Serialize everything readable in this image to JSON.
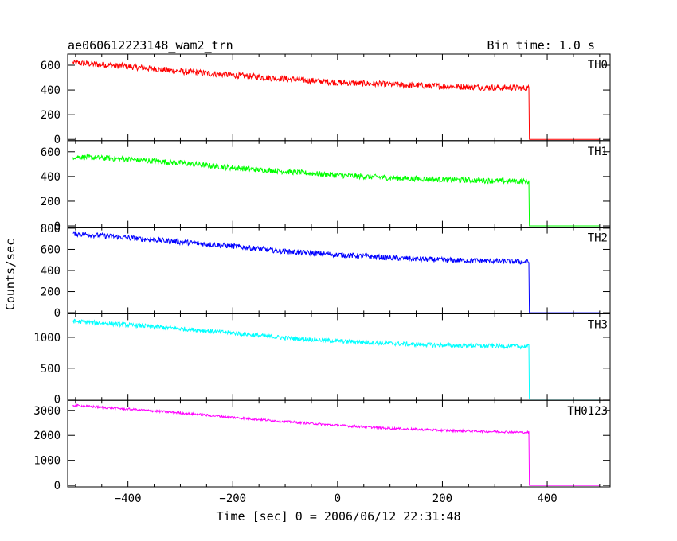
{
  "title_left": "ae060612223148_wam2_trn",
  "title_right": "Bin time: 1.0 s",
  "ylabel": "Counts/sec",
  "xlabel": "Time [sec] 0 = 2006/06/12 22:31:48",
  "chart_data": {
    "type": "line",
    "title": "ae060612223148_wam2_trn",
    "subtitle": "Bin time: 1.0 s",
    "xlabel": "Time [sec] 0 = 2006/06/12 22:31:48",
    "ylabel": "Counts/sec",
    "xlim": [
      -515,
      520
    ],
    "xticks": [
      -400,
      -200,
      0,
      200,
      400
    ],
    "xtick_labels": [
      "−400",
      "−200",
      "0",
      "200",
      "400"
    ],
    "grid": false,
    "series": [
      {
        "name": "TH0",
        "color": "#ff0000",
        "ylim": [
          -10,
          690
        ],
        "yticks": [
          0,
          200,
          400,
          600
        ],
        "x": [
          -505,
          -400,
          -300,
          -200,
          -100,
          0,
          100,
          200,
          300,
          365,
          366,
          500
        ],
        "y": [
          620,
          590,
          550,
          520,
          490,
          460,
          445,
          430,
          420,
          415,
          0,
          0
        ],
        "noise": 25
      },
      {
        "name": "TH1",
        "color": "#00ff00",
        "ylim": [
          -10,
          690
        ],
        "yticks": [
          0,
          200,
          400,
          600
        ],
        "x": [
          -505,
          -400,
          -300,
          -200,
          -100,
          0,
          100,
          200,
          300,
          365,
          366,
          500
        ],
        "y": [
          560,
          540,
          510,
          470,
          440,
          410,
          390,
          375,
          365,
          360,
          0,
          0
        ],
        "noise": 22
      },
      {
        "name": "TH2",
        "color": "#0000ff",
        "ylim": [
          -10,
          810
        ],
        "yticks": [
          0,
          200,
          400,
          600,
          800
        ],
        "x": [
          -505,
          -400,
          -300,
          -200,
          -100,
          0,
          100,
          200,
          300,
          365,
          366,
          500
        ],
        "y": [
          750,
          710,
          670,
          630,
          580,
          550,
          520,
          500,
          490,
          480,
          0,
          0
        ],
        "noise": 25
      },
      {
        "name": "TH3",
        "color": "#00ffff",
        "ylim": [
          -20,
          1380
        ],
        "yticks": [
          0,
          500,
          1000
        ],
        "x": [
          -505,
          -400,
          -300,
          -200,
          -100,
          0,
          100,
          200,
          300,
          365,
          366,
          500
        ],
        "y": [
          1260,
          1200,
          1140,
          1070,
          990,
          940,
          900,
          870,
          860,
          850,
          0,
          0
        ],
        "noise": 35
      },
      {
        "name": "TH0123",
        "color": "#ff00ff",
        "ylim": [
          -60,
          3400
        ],
        "yticks": [
          0,
          1000,
          2000,
          3000
        ],
        "x": [
          -505,
          -400,
          -300,
          -200,
          -100,
          0,
          100,
          200,
          300,
          365,
          366,
          500
        ],
        "y": [
          3200,
          3050,
          2900,
          2720,
          2550,
          2400,
          2280,
          2200,
          2150,
          2120,
          0,
          0
        ],
        "noise": 45
      }
    ]
  }
}
